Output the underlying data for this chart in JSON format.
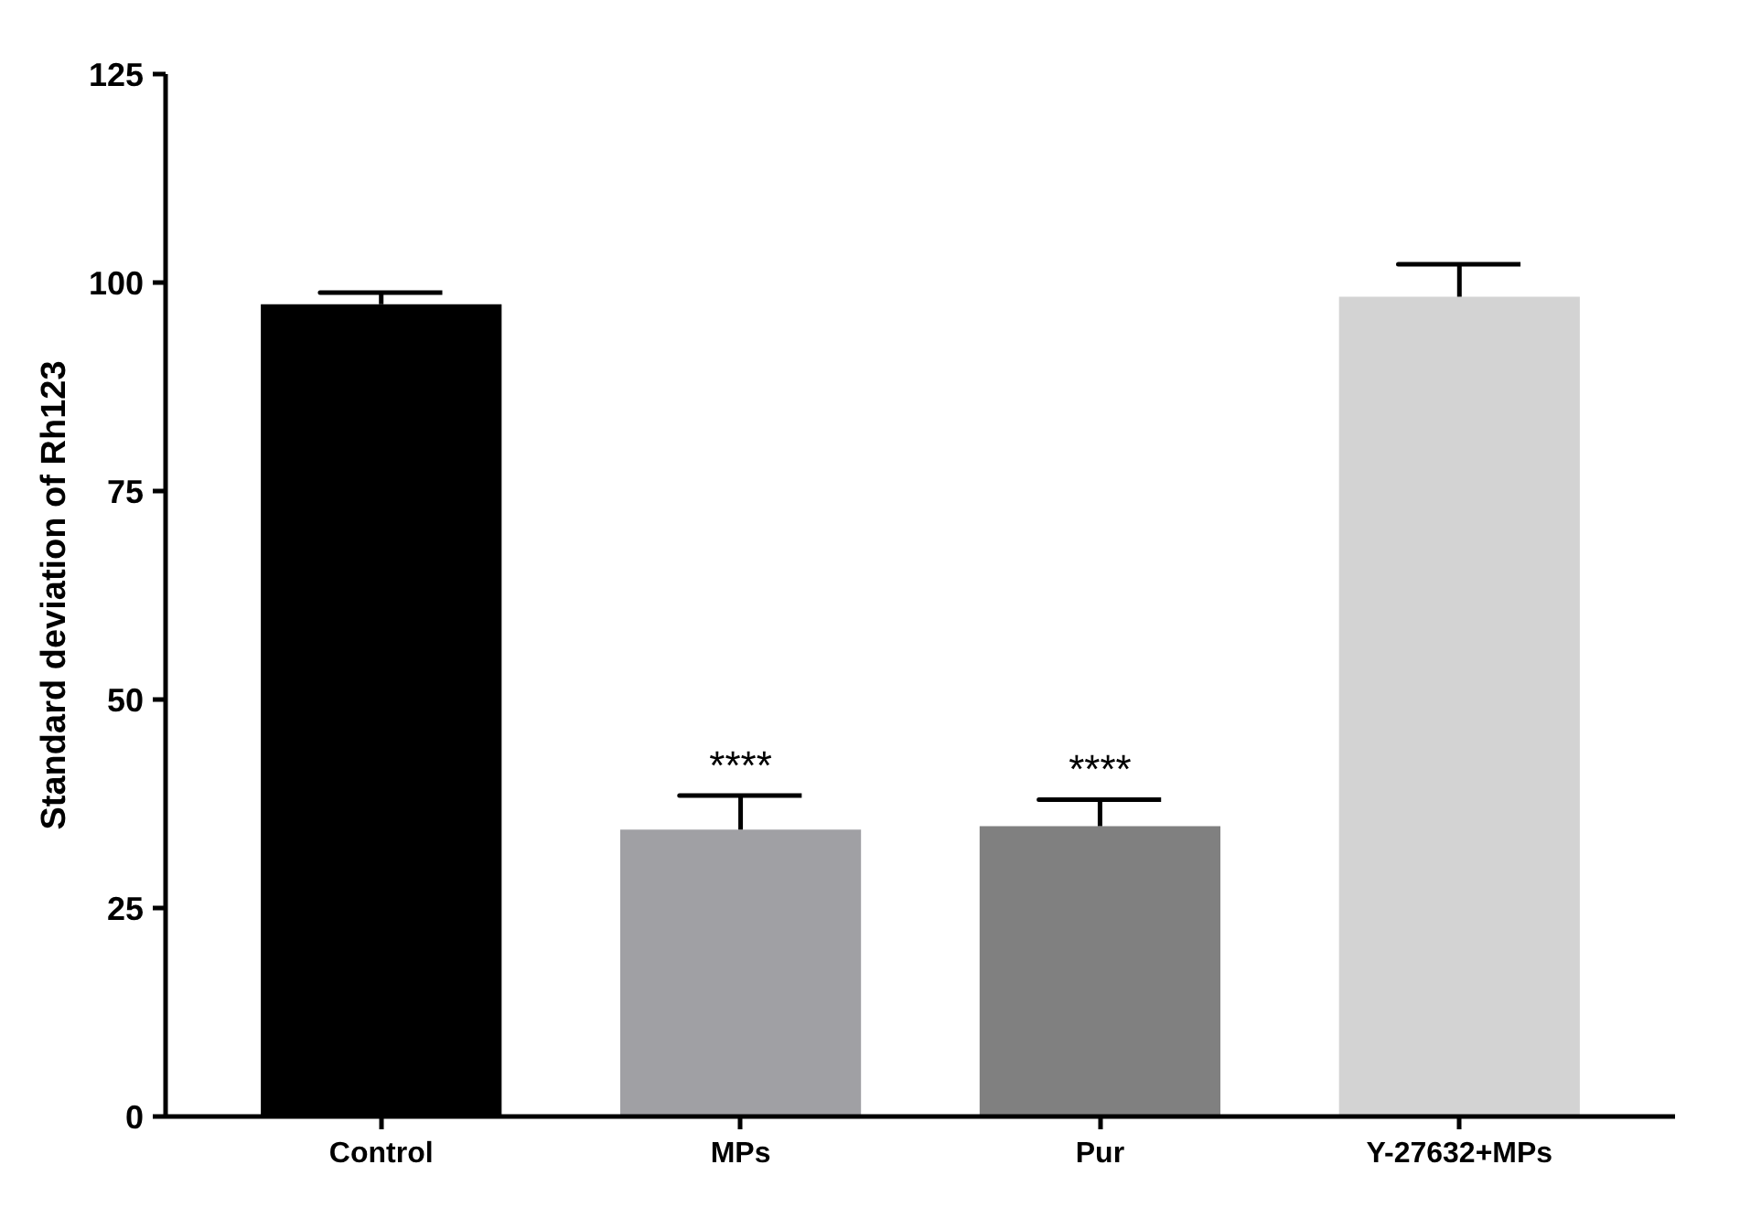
{
  "chart_data": {
    "type": "bar",
    "ylabel": "Standard deviation of Rh123",
    "categories": [
      "Control",
      "MPs",
      "Pur",
      "Y-27632+MPs"
    ],
    "values": [
      97.4,
      34.4,
      34.8,
      98.3
    ],
    "colors": [
      "#000000",
      "#a0a0a4",
      "#808080",
      "#d3d3d3"
    ],
    "errors": [
      1.4,
      4.1,
      3.2,
      3.9
    ],
    "value_labels": [
      null,
      "****",
      "****",
      null
    ],
    "ylim": [
      0,
      125
    ],
    "yticks": [
      0,
      25,
      50,
      75,
      100,
      125
    ],
    "grid": false
  }
}
